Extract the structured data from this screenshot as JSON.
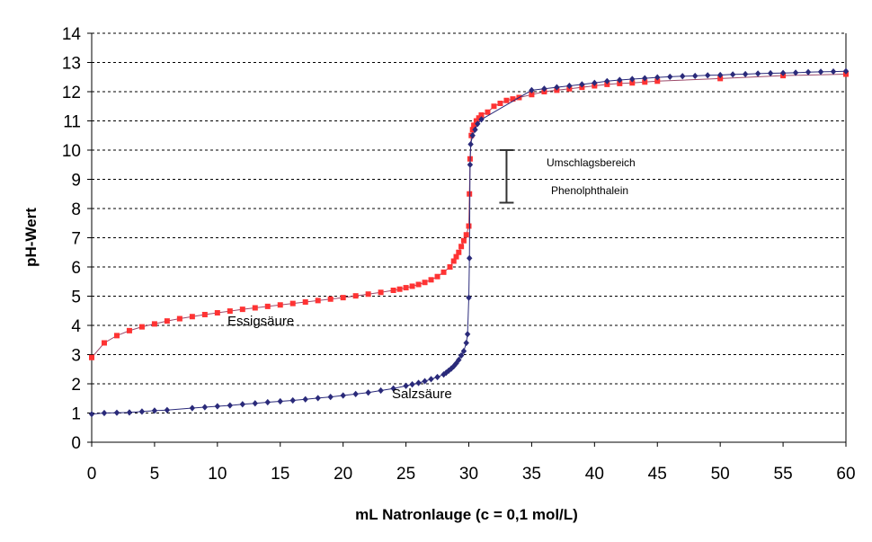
{
  "chart_data": {
    "type": "line",
    "xlabel": "mL Natronlauge (c = 0,1 mol/L)",
    "ylabel": "pH-Wert",
    "xlim": [
      0,
      60
    ],
    "ylim": [
      0,
      14
    ],
    "x_ticks": [
      0,
      5,
      10,
      15,
      20,
      25,
      30,
      35,
      40,
      45,
      50,
      55,
      60
    ],
    "y_ticks": [
      0,
      1,
      2,
      3,
      4,
      5,
      6,
      7,
      8,
      9,
      10,
      11,
      12,
      13,
      14
    ],
    "grid": "horizontal dashed",
    "legend": "none",
    "series": [
      {
        "name": "Essigsäure",
        "color": "#ff3333",
        "line_color": "#9c4a6a",
        "marker": "square",
        "points": [
          [
            0,
            2.9
          ],
          [
            1,
            3.4
          ],
          [
            2,
            3.65
          ],
          [
            3,
            3.82
          ],
          [
            4,
            3.95
          ],
          [
            5,
            4.05
          ],
          [
            6,
            4.15
          ],
          [
            7,
            4.23
          ],
          [
            8,
            4.3
          ],
          [
            9,
            4.37
          ],
          [
            10,
            4.43
          ],
          [
            11,
            4.49
          ],
          [
            12,
            4.55
          ],
          [
            13,
            4.6
          ],
          [
            14,
            4.65
          ],
          [
            15,
            4.7
          ],
          [
            16,
            4.75
          ],
          [
            17,
            4.8
          ],
          [
            18,
            4.85
          ],
          [
            19,
            4.9
          ],
          [
            20,
            4.95
          ],
          [
            21,
            5.01
          ],
          [
            22,
            5.07
          ],
          [
            23,
            5.13
          ],
          [
            24,
            5.2
          ],
          [
            24.5,
            5.24
          ],
          [
            25,
            5.29
          ],
          [
            25.5,
            5.34
          ],
          [
            26,
            5.4
          ],
          [
            26.5,
            5.47
          ],
          [
            27,
            5.56
          ],
          [
            27.5,
            5.67
          ],
          [
            28,
            5.82
          ],
          [
            28.5,
            6.0
          ],
          [
            28.8,
            6.2
          ],
          [
            29,
            6.35
          ],
          [
            29.2,
            6.5
          ],
          [
            29.4,
            6.7
          ],
          [
            29.6,
            6.9
          ],
          [
            29.8,
            7.1
          ],
          [
            30,
            7.4
          ],
          [
            30.05,
            8.5
          ],
          [
            30.1,
            9.7
          ],
          [
            30.2,
            10.5
          ],
          [
            30.3,
            10.7
          ],
          [
            30.4,
            10.85
          ],
          [
            30.6,
            11.0
          ],
          [
            30.8,
            11.1
          ],
          [
            31,
            11.2
          ],
          [
            31.5,
            11.3
          ],
          [
            32,
            11.5
          ],
          [
            32.5,
            11.6
          ],
          [
            33,
            11.7
          ],
          [
            33.5,
            11.75
          ],
          [
            34,
            11.8
          ],
          [
            35,
            11.9
          ],
          [
            36,
            12.0
          ],
          [
            37,
            12.05
          ],
          [
            38,
            12.1
          ],
          [
            39,
            12.15
          ],
          [
            40,
            12.2
          ],
          [
            41,
            12.25
          ],
          [
            42,
            12.28
          ],
          [
            43,
            12.3
          ],
          [
            44,
            12.33
          ],
          [
            45,
            12.36
          ],
          [
            50,
            12.45
          ],
          [
            55,
            12.55
          ],
          [
            60,
            12.6
          ]
        ]
      },
      {
        "name": "Salzsäure",
        "color": "#2a2a7a",
        "line_color": "#2a2a7a",
        "marker": "diamond",
        "points": [
          [
            0,
            0.96
          ],
          [
            1,
            1.0
          ],
          [
            2,
            1.01
          ],
          [
            3,
            1.02
          ],
          [
            4,
            1.05
          ],
          [
            5,
            1.08
          ],
          [
            6,
            1.1
          ],
          [
            8,
            1.17
          ],
          [
            9,
            1.2
          ],
          [
            10,
            1.23
          ],
          [
            11,
            1.26
          ],
          [
            12,
            1.3
          ],
          [
            13,
            1.33
          ],
          [
            14,
            1.37
          ],
          [
            15,
            1.4
          ],
          [
            16,
            1.43
          ],
          [
            17,
            1.47
          ],
          [
            18,
            1.51
          ],
          [
            19,
            1.55
          ],
          [
            20,
            1.6
          ],
          [
            21,
            1.65
          ],
          [
            22,
            1.7
          ],
          [
            23,
            1.77
          ],
          [
            24,
            1.84
          ],
          [
            25,
            1.93
          ],
          [
            25.5,
            1.98
          ],
          [
            26,
            2.03
          ],
          [
            26.5,
            2.09
          ],
          [
            27,
            2.16
          ],
          [
            27.5,
            2.23
          ],
          [
            28,
            2.32
          ],
          [
            28.2,
            2.38
          ],
          [
            28.4,
            2.45
          ],
          [
            28.6,
            2.52
          ],
          [
            28.8,
            2.6
          ],
          [
            29,
            2.7
          ],
          [
            29.2,
            2.82
          ],
          [
            29.4,
            2.97
          ],
          [
            29.6,
            3.12
          ],
          [
            29.8,
            3.4
          ],
          [
            29.9,
            3.7
          ],
          [
            30,
            4.95
          ],
          [
            30.05,
            6.3
          ],
          [
            30.1,
            9.5
          ],
          [
            30.15,
            10.2
          ],
          [
            30.3,
            10.5
          ],
          [
            30.5,
            10.7
          ],
          [
            30.7,
            10.9
          ],
          [
            31,
            11.05
          ],
          [
            35,
            12.05
          ],
          [
            36,
            12.1
          ],
          [
            37,
            12.15
          ],
          [
            38,
            12.2
          ],
          [
            39,
            12.25
          ],
          [
            40,
            12.3
          ],
          [
            41,
            12.36
          ],
          [
            42,
            12.4
          ],
          [
            43,
            12.43
          ],
          [
            44,
            12.46
          ],
          [
            45,
            12.49
          ],
          [
            46,
            12.51
          ],
          [
            47,
            12.53
          ],
          [
            48,
            12.54
          ],
          [
            49,
            12.56
          ],
          [
            50,
            12.57
          ],
          [
            51,
            12.59
          ],
          [
            52,
            12.6
          ],
          [
            53,
            12.62
          ],
          [
            54,
            12.63
          ],
          [
            55,
            12.64
          ],
          [
            56,
            12.65
          ],
          [
            57,
            12.67
          ],
          [
            58,
            12.68
          ],
          [
            59,
            12.69
          ],
          [
            60,
            12.7
          ]
        ]
      }
    ],
    "annotations": {
      "essig_label": "Essigsäure",
      "salz_label": "Salzsäure",
      "range_label_1": "Umschlagsbereich",
      "range_label_2": "Phenolphthalein",
      "range_bar": {
        "x": 33,
        "y_from": 8.2,
        "y_to": 10.0
      }
    }
  }
}
